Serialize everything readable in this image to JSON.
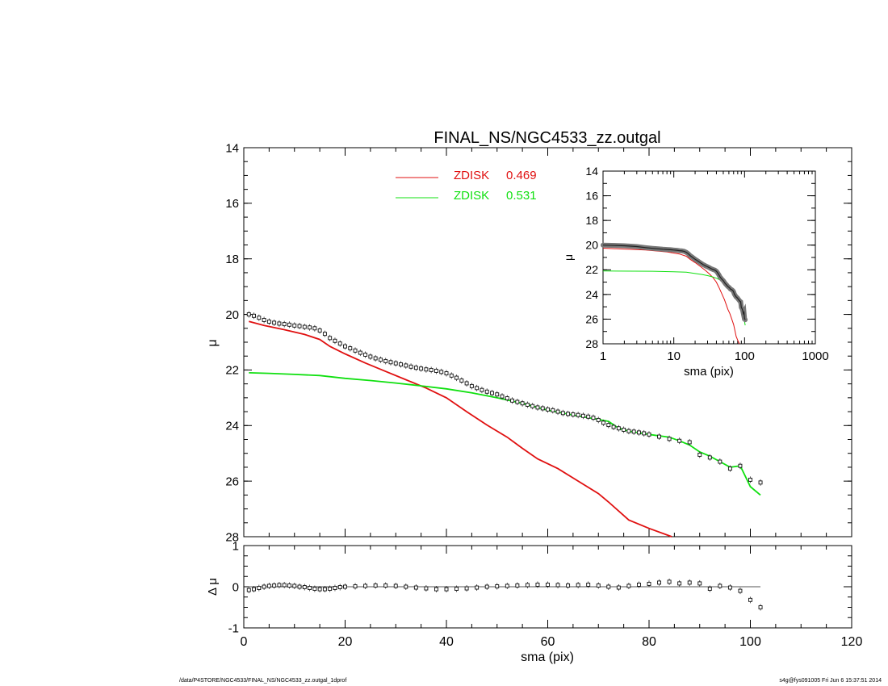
{
  "footer": {
    "left": "/data/P4STORE/NGC4533/FINAL_NS/NGC4533_zz.outgal_1dprof",
    "right": "s4g@fys091005  Fri Jun  6 15:37:51 2014"
  },
  "chart_data": [
    {
      "id": "main",
      "type": "line",
      "title": "FINAL_NS/NGC4533_zz.outgal",
      "xlabel": "",
      "ylabel": "μ",
      "xlim": [
        0,
        120
      ],
      "ylim": [
        28,
        14
      ],
      "y_inverted": true,
      "yticks": [
        "14",
        "16",
        "18",
        "20",
        "22",
        "24",
        "26",
        "28"
      ],
      "legend": {
        "placement": "top-center",
        "entries": [
          {
            "name": "ZDISK",
            "value": "0.469",
            "color": "#e01010"
          },
          {
            "name": "ZDISK",
            "value": "0.531",
            "color": "#10e010"
          }
        ]
      },
      "series": [
        {
          "name": "data",
          "style": "square-markers",
          "color": "#000000",
          "x": [
            1,
            2,
            3,
            4,
            5,
            6,
            7,
            8,
            9,
            10,
            11,
            12,
            13,
            14,
            15,
            16,
            17,
            18,
            19,
            20,
            21,
            22,
            23,
            24,
            25,
            26,
            27,
            28,
            29,
            30,
            31,
            32,
            33,
            34,
            35,
            36,
            37,
            38,
            39,
            40,
            41,
            42,
            43,
            44,
            45,
            46,
            47,
            48,
            49,
            50,
            51,
            52,
            53,
            54,
            55,
            56,
            57,
            58,
            59,
            60,
            61,
            62,
            63,
            64,
            65,
            66,
            67,
            68,
            69,
            70,
            71,
            72,
            73,
            74,
            75,
            76,
            77,
            78,
            79,
            80,
            82,
            84,
            86,
            88,
            90,
            92,
            94,
            96,
            98,
            100,
            102
          ],
          "y": [
            20.0,
            20.05,
            20.12,
            20.2,
            20.26,
            20.3,
            20.33,
            20.35,
            20.37,
            20.4,
            20.42,
            20.45,
            20.47,
            20.5,
            20.58,
            20.7,
            20.85,
            20.95,
            21.05,
            21.15,
            21.22,
            21.3,
            21.38,
            21.45,
            21.52,
            21.58,
            21.63,
            21.68,
            21.72,
            21.76,
            21.8,
            21.84,
            21.88,
            21.92,
            21.95,
            21.98,
            22.0,
            22.03,
            22.07,
            22.12,
            22.2,
            22.28,
            22.38,
            22.48,
            22.58,
            22.65,
            22.72,
            22.78,
            22.83,
            22.88,
            22.95,
            23.02,
            23.1,
            23.15,
            23.2,
            23.25,
            23.3,
            23.35,
            23.38,
            23.42,
            23.45,
            23.5,
            23.55,
            23.58,
            23.6,
            23.62,
            23.65,
            23.68,
            23.72,
            23.8,
            23.9,
            23.98,
            24.05,
            24.1,
            24.15,
            24.2,
            24.22,
            24.25,
            24.28,
            24.32,
            24.4,
            24.48,
            24.55,
            24.6,
            25.05,
            25.15,
            25.3,
            25.55,
            25.45,
            25.95,
            26.05
          ]
        },
        {
          "name": "ZDISK 0.469",
          "style": "line",
          "color": "#e01010",
          "x": [
            1,
            4,
            8,
            12,
            15,
            17,
            20,
            24,
            28,
            32,
            36,
            40,
            44,
            48,
            52,
            55,
            58,
            62,
            66,
            70,
            72,
            76,
            80,
            84.5
          ],
          "y": [
            20.25,
            20.4,
            20.55,
            20.72,
            20.9,
            21.15,
            21.42,
            21.75,
            22.05,
            22.35,
            22.65,
            23.0,
            23.5,
            23.98,
            24.42,
            24.82,
            25.2,
            25.55,
            26.0,
            26.45,
            26.75,
            27.4,
            27.7,
            28.0
          ]
        },
        {
          "name": "ZDISK 0.531",
          "style": "line",
          "color": "#10e010",
          "x": [
            1,
            5,
            10,
            15,
            20,
            25,
            30,
            35,
            40,
            45,
            50,
            55,
            60,
            65,
            70,
            72,
            74,
            76,
            80,
            84,
            86,
            88,
            90,
            92,
            94,
            96,
            98,
            100,
            102
          ],
          "y": [
            22.1,
            22.12,
            22.16,
            22.2,
            22.3,
            22.38,
            22.47,
            22.57,
            22.68,
            22.82,
            23.0,
            23.2,
            23.45,
            23.62,
            23.78,
            23.85,
            24.1,
            24.2,
            24.32,
            24.42,
            24.55,
            24.7,
            24.95,
            25.1,
            25.3,
            25.5,
            25.45,
            26.2,
            26.5
          ]
        }
      ]
    },
    {
      "id": "residual",
      "type": "scatter",
      "xlabel": "sma (pix)",
      "ylabel": "Δ μ",
      "xlim": [
        0,
        120
      ],
      "ylim": [
        -1,
        1
      ],
      "xticks": [
        "0",
        "20",
        "40",
        "60",
        "80",
        "100",
        "120"
      ],
      "yticks": [
        "-1",
        "0",
        "1"
      ],
      "series": [
        {
          "name": "residual",
          "style": "square-markers",
          "color": "#000000",
          "x": [
            1,
            2,
            3,
            4,
            5,
            6,
            7,
            8,
            9,
            10,
            11,
            12,
            13,
            14,
            15,
            16,
            17,
            18,
            19,
            20,
            22,
            24,
            26,
            28,
            30,
            32,
            34,
            36,
            38,
            40,
            42,
            44,
            46,
            48,
            50,
            52,
            54,
            56,
            58,
            60,
            62,
            64,
            66,
            68,
            70,
            72,
            74,
            76,
            78,
            80,
            82,
            84,
            86,
            88,
            90,
            92,
            94,
            96,
            98,
            100,
            102
          ],
          "y": [
            -0.08,
            -0.06,
            -0.03,
            0.0,
            0.02,
            0.03,
            0.04,
            0.04,
            0.03,
            0.02,
            0.0,
            -0.01,
            -0.03,
            -0.05,
            -0.06,
            -0.06,
            -0.05,
            -0.03,
            -0.01,
            0.0,
            0.01,
            0.02,
            0.03,
            0.03,
            0.02,
            0.0,
            -0.02,
            -0.04,
            -0.06,
            -0.06,
            -0.05,
            -0.04,
            -0.02,
            0.0,
            0.01,
            0.02,
            0.03,
            0.04,
            0.05,
            0.05,
            0.04,
            0.03,
            0.04,
            0.05,
            0.03,
            0.0,
            -0.02,
            0.02,
            0.05,
            0.07,
            0.1,
            0.12,
            0.08,
            0.1,
            0.08,
            -0.05,
            0.02,
            -0.02,
            -0.1,
            -0.32,
            -0.5
          ]
        },
        {
          "name": "zero",
          "style": "line",
          "color": "#555555",
          "x": [
            1,
            102
          ],
          "y": [
            0,
            0
          ]
        }
      ]
    },
    {
      "id": "inset",
      "type": "line",
      "xlabel": "sma (pix)",
      "ylabel": "μ",
      "xscale": "log",
      "xlim": [
        1,
        1000
      ],
      "ylim": [
        28,
        14
      ],
      "y_inverted": true,
      "xticks": [
        "1",
        "10",
        "100",
        "1000"
      ],
      "yticks": [
        "14",
        "16",
        "18",
        "20",
        "22",
        "24",
        "26",
        "28"
      ]
    }
  ]
}
